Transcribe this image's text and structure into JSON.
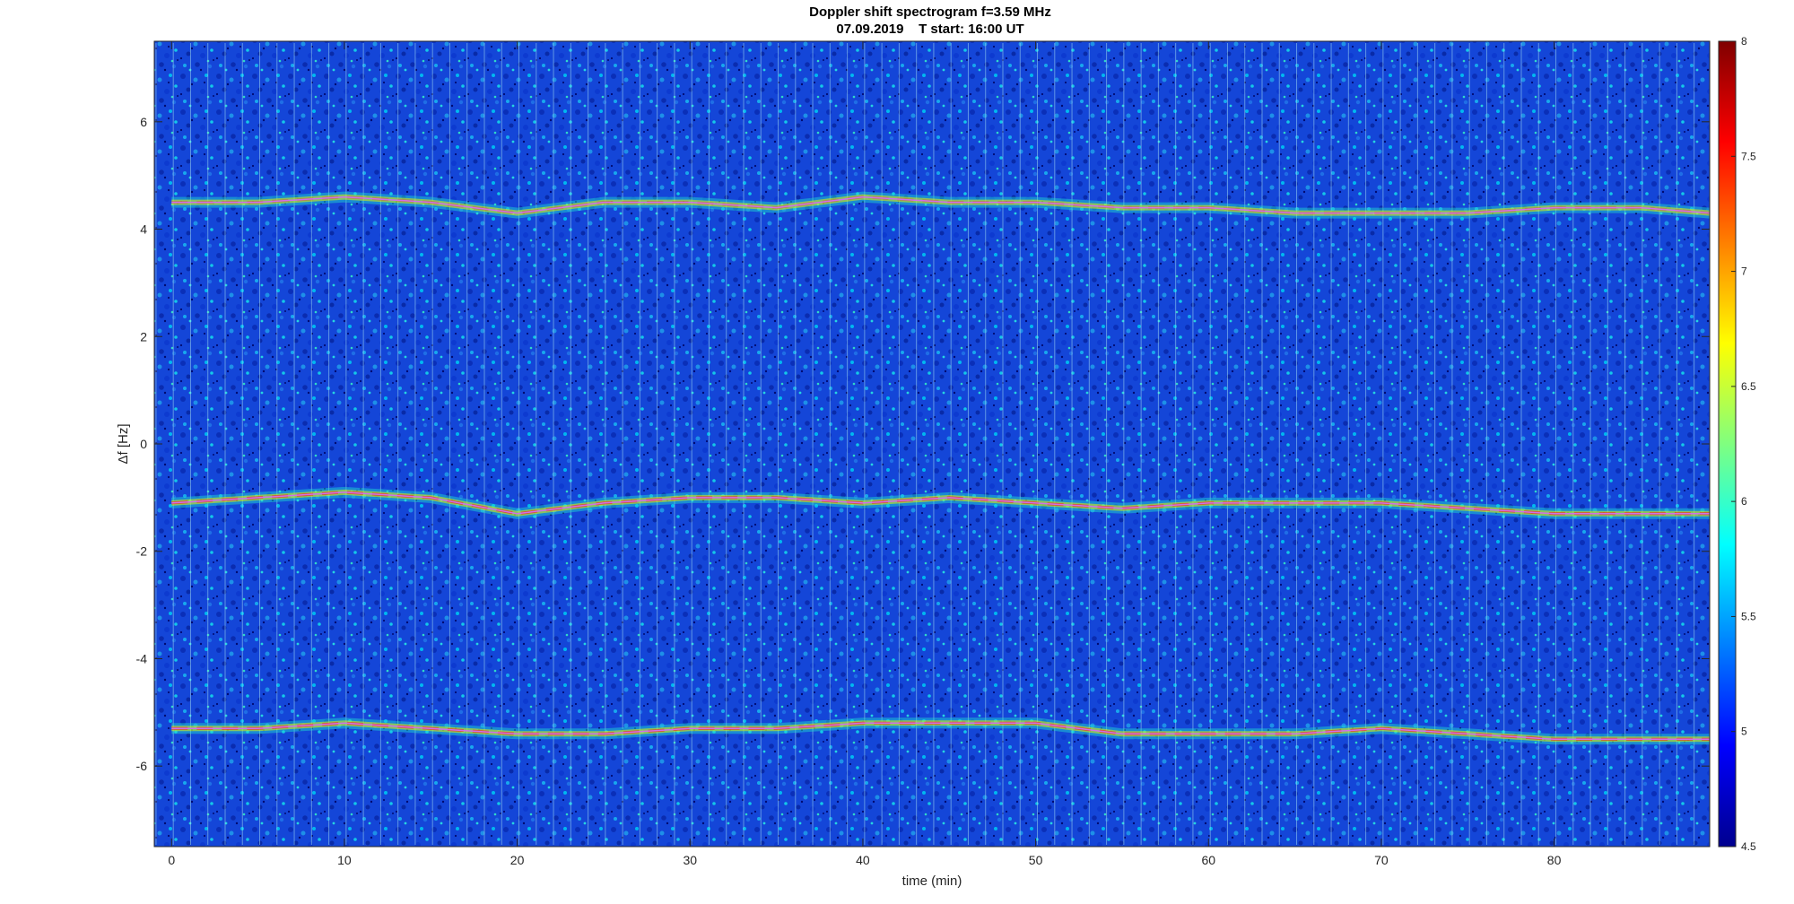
{
  "chart_data": {
    "type": "heatmap",
    "title_line1": "Doppler shift spectrogram f=3.59 MHz",
    "title_line2": "07.09.2019    T start: 16:00 UT",
    "xlabel": "time (min)",
    "ylabel": "Δf [Hz]",
    "xlim": [
      -1,
      89
    ],
    "ylim": [
      -7.5,
      7.5
    ],
    "xticks": [
      0,
      10,
      20,
      30,
      40,
      50,
      60,
      70,
      80
    ],
    "yticks": [
      -6,
      -4,
      -2,
      0,
      2,
      4,
      6
    ],
    "colorbar": {
      "range": [
        4.5,
        8
      ],
      "ticks": [
        4.5,
        5,
        5.5,
        6,
        6.5,
        7,
        7.5,
        8
      ],
      "colormap": "jet"
    },
    "series": [
      {
        "x": [
          0,
          5,
          10,
          15,
          20,
          25,
          30,
          35,
          40,
          45,
          50,
          55,
          60,
          65,
          70,
          75,
          80,
          85,
          89
        ],
        "values": [
          4.5,
          4.5,
          4.6,
          4.5,
          4.3,
          4.5,
          4.5,
          4.4,
          4.6,
          4.5,
          4.5,
          4.4,
          4.4,
          4.3,
          4.3,
          4.3,
          4.4,
          4.4,
          4.3
        ]
      },
      {
        "x": [
          0,
          5,
          10,
          15,
          20,
          25,
          30,
          35,
          40,
          45,
          50,
          55,
          60,
          65,
          70,
          75,
          80,
          85,
          89
        ],
        "values": [
          -1.1,
          -1.0,
          -0.9,
          -1.0,
          -1.3,
          -1.1,
          -1.0,
          -1.0,
          -1.1,
          -1.0,
          -1.1,
          -1.2,
          -1.1,
          -1.1,
          -1.1,
          -1.2,
          -1.3,
          -1.3,
          -1.3
        ]
      },
      {
        "x": [
          0,
          5,
          10,
          15,
          20,
          25,
          30,
          35,
          40,
          45,
          50,
          55,
          60,
          65,
          70,
          75,
          80,
          85,
          89
        ],
        "values": [
          -5.3,
          -5.3,
          -5.2,
          -5.3,
          -5.4,
          -5.4,
          -5.3,
          -5.3,
          -5.2,
          -5.2,
          -5.2,
          -5.4,
          -5.4,
          -5.4,
          -5.3,
          -5.4,
          -5.5,
          -5.5,
          -5.5
        ]
      }
    ]
  },
  "colors": {
    "trace_line": "#d070e8",
    "black_trace": "#000000",
    "background": "#ffffff"
  }
}
